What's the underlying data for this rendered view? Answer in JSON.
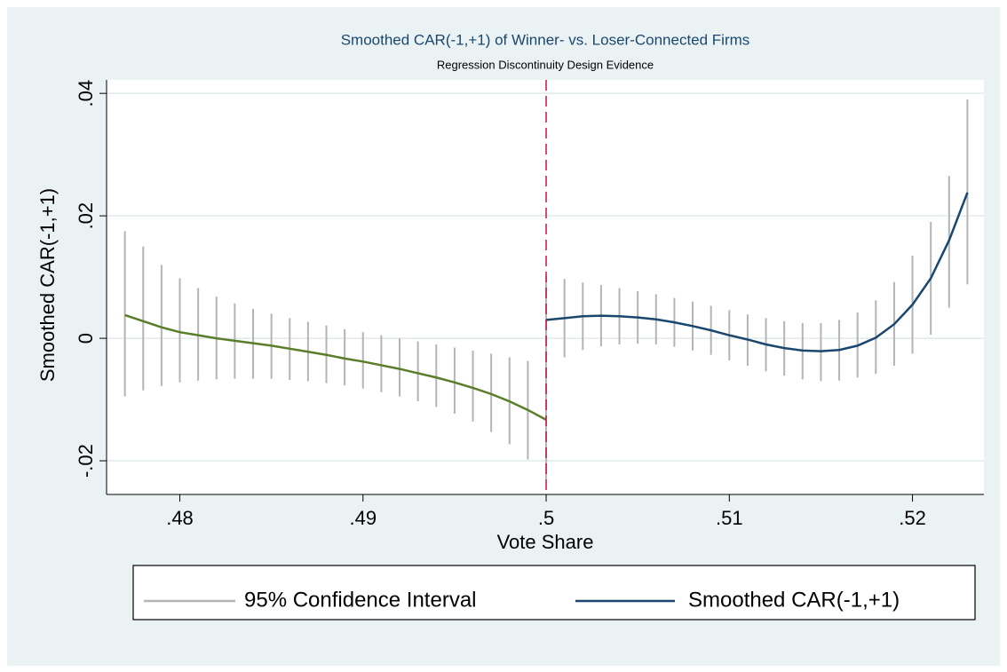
{
  "chart_data": {
    "type": "rd-plot",
    "title": "Smoothed CAR(-1,+1) of Winner- vs. Loser-Connected Firms",
    "subtitle": "Regression Discontinuity Design Evidence",
    "xlabel": "Vote Share",
    "ylabel": "Smoothed CAR(-1,+1)",
    "xlim": [
      0.476,
      0.5239
    ],
    "ylim": [
      -0.0255,
      0.0422
    ],
    "xticks": [
      {
        "value": 0.48,
        "label": ".48"
      },
      {
        "value": 0.49,
        "label": ".49"
      },
      {
        "value": 0.5,
        "label": ".5"
      },
      {
        "value": 0.51,
        "label": ".51"
      },
      {
        "value": 0.52,
        "label": ".52"
      }
    ],
    "yticks": [
      {
        "value": -0.02,
        "label": "-.02"
      },
      0,
      {
        "value": 0.02,
        "label": ".02"
      },
      {
        "value": 0.04,
        "label": ".04"
      }
    ],
    "grid": true,
    "cutoff": 0.5,
    "cutoff_color": "#c0184a",
    "ci": {
      "name": "95% Confidence Interval",
      "color": "#b4b4b4"
    },
    "fit": {
      "name": "Smoothed CAR(-1,+1)",
      "color": "#1a476f"
    },
    "segments": [
      {
        "line_color": "#5a7d2a",
        "x": [
          0.477,
          0.478,
          0.479,
          0.48,
          0.481,
          0.482,
          0.483,
          0.484,
          0.485,
          0.486,
          0.487,
          0.488,
          0.489,
          0.49,
          0.491,
          0.492,
          0.493,
          0.494,
          0.495,
          0.496,
          0.497,
          0.498,
          0.499,
          0.5
        ],
        "values": [
          0.0038,
          0.0028,
          0.0018,
          0.001,
          0.0005,
          0.0,
          -0.0004,
          -0.0008,
          -0.0012,
          -0.0017,
          -0.0022,
          -0.0027,
          -0.0033,
          -0.0038,
          -0.0044,
          -0.005,
          -0.0057,
          -0.0064,
          -0.0072,
          -0.0081,
          -0.0091,
          -0.0103,
          -0.0117,
          -0.0133
        ],
        "upper": [
          0.0175,
          0.015,
          0.012,
          0.0098,
          0.0082,
          0.0068,
          0.0057,
          0.0048,
          0.004,
          0.0033,
          0.0027,
          0.0021,
          0.0015,
          0.001,
          0.0005,
          0.0,
          -0.0005,
          -0.001,
          -0.0015,
          -0.002,
          -0.0025,
          -0.0031,
          -0.0037,
          -0.0042
        ],
        "lower": [
          -0.0095,
          -0.0085,
          -0.0078,
          -0.0072,
          -0.0069,
          -0.0067,
          -0.0066,
          -0.0066,
          -0.0066,
          -0.0068,
          -0.007,
          -0.0073,
          -0.0077,
          -0.0082,
          -0.0088,
          -0.0095,
          -0.0103,
          -0.0112,
          -0.0123,
          -0.0136,
          -0.0153,
          -0.0173,
          -0.0198,
          -0.023
        ]
      },
      {
        "line_color": "#1a476f",
        "x": [
          0.5,
          0.501,
          0.502,
          0.503,
          0.504,
          0.505,
          0.506,
          0.507,
          0.508,
          0.509,
          0.51,
          0.511,
          0.512,
          0.513,
          0.514,
          0.515,
          0.516,
          0.517,
          0.518,
          0.519,
          0.52,
          0.521,
          0.522,
          0.523
        ],
        "values": [
          0.003,
          0.0033,
          0.0036,
          0.0037,
          0.0036,
          0.0034,
          0.0031,
          0.0026,
          0.002,
          0.0013,
          0.0005,
          -0.0002,
          -0.001,
          -0.0016,
          -0.002,
          -0.0021,
          -0.0019,
          -0.0012,
          0.0001,
          0.0023,
          0.0055,
          0.0098,
          0.016,
          0.0238
        ],
        "upper": [
          0.0102,
          0.0097,
          0.0091,
          0.0087,
          0.0082,
          0.0077,
          0.0072,
          0.0066,
          0.006,
          0.0053,
          0.0046,
          0.0039,
          0.0033,
          0.0028,
          0.0025,
          0.0025,
          0.003,
          0.0042,
          0.0062,
          0.0092,
          0.0135,
          0.019,
          0.0265,
          0.039
        ],
        "lower": [
          -0.0042,
          -0.0031,
          -0.0019,
          -0.0013,
          -0.001,
          -0.0009,
          -0.001,
          -0.0014,
          -0.002,
          -0.0027,
          -0.0036,
          -0.0045,
          -0.0054,
          -0.0061,
          -0.0067,
          -0.007,
          -0.0069,
          -0.0064,
          -0.0058,
          -0.0045,
          -0.0025,
          0.0006,
          0.005,
          0.0088
        ]
      }
    ]
  }
}
